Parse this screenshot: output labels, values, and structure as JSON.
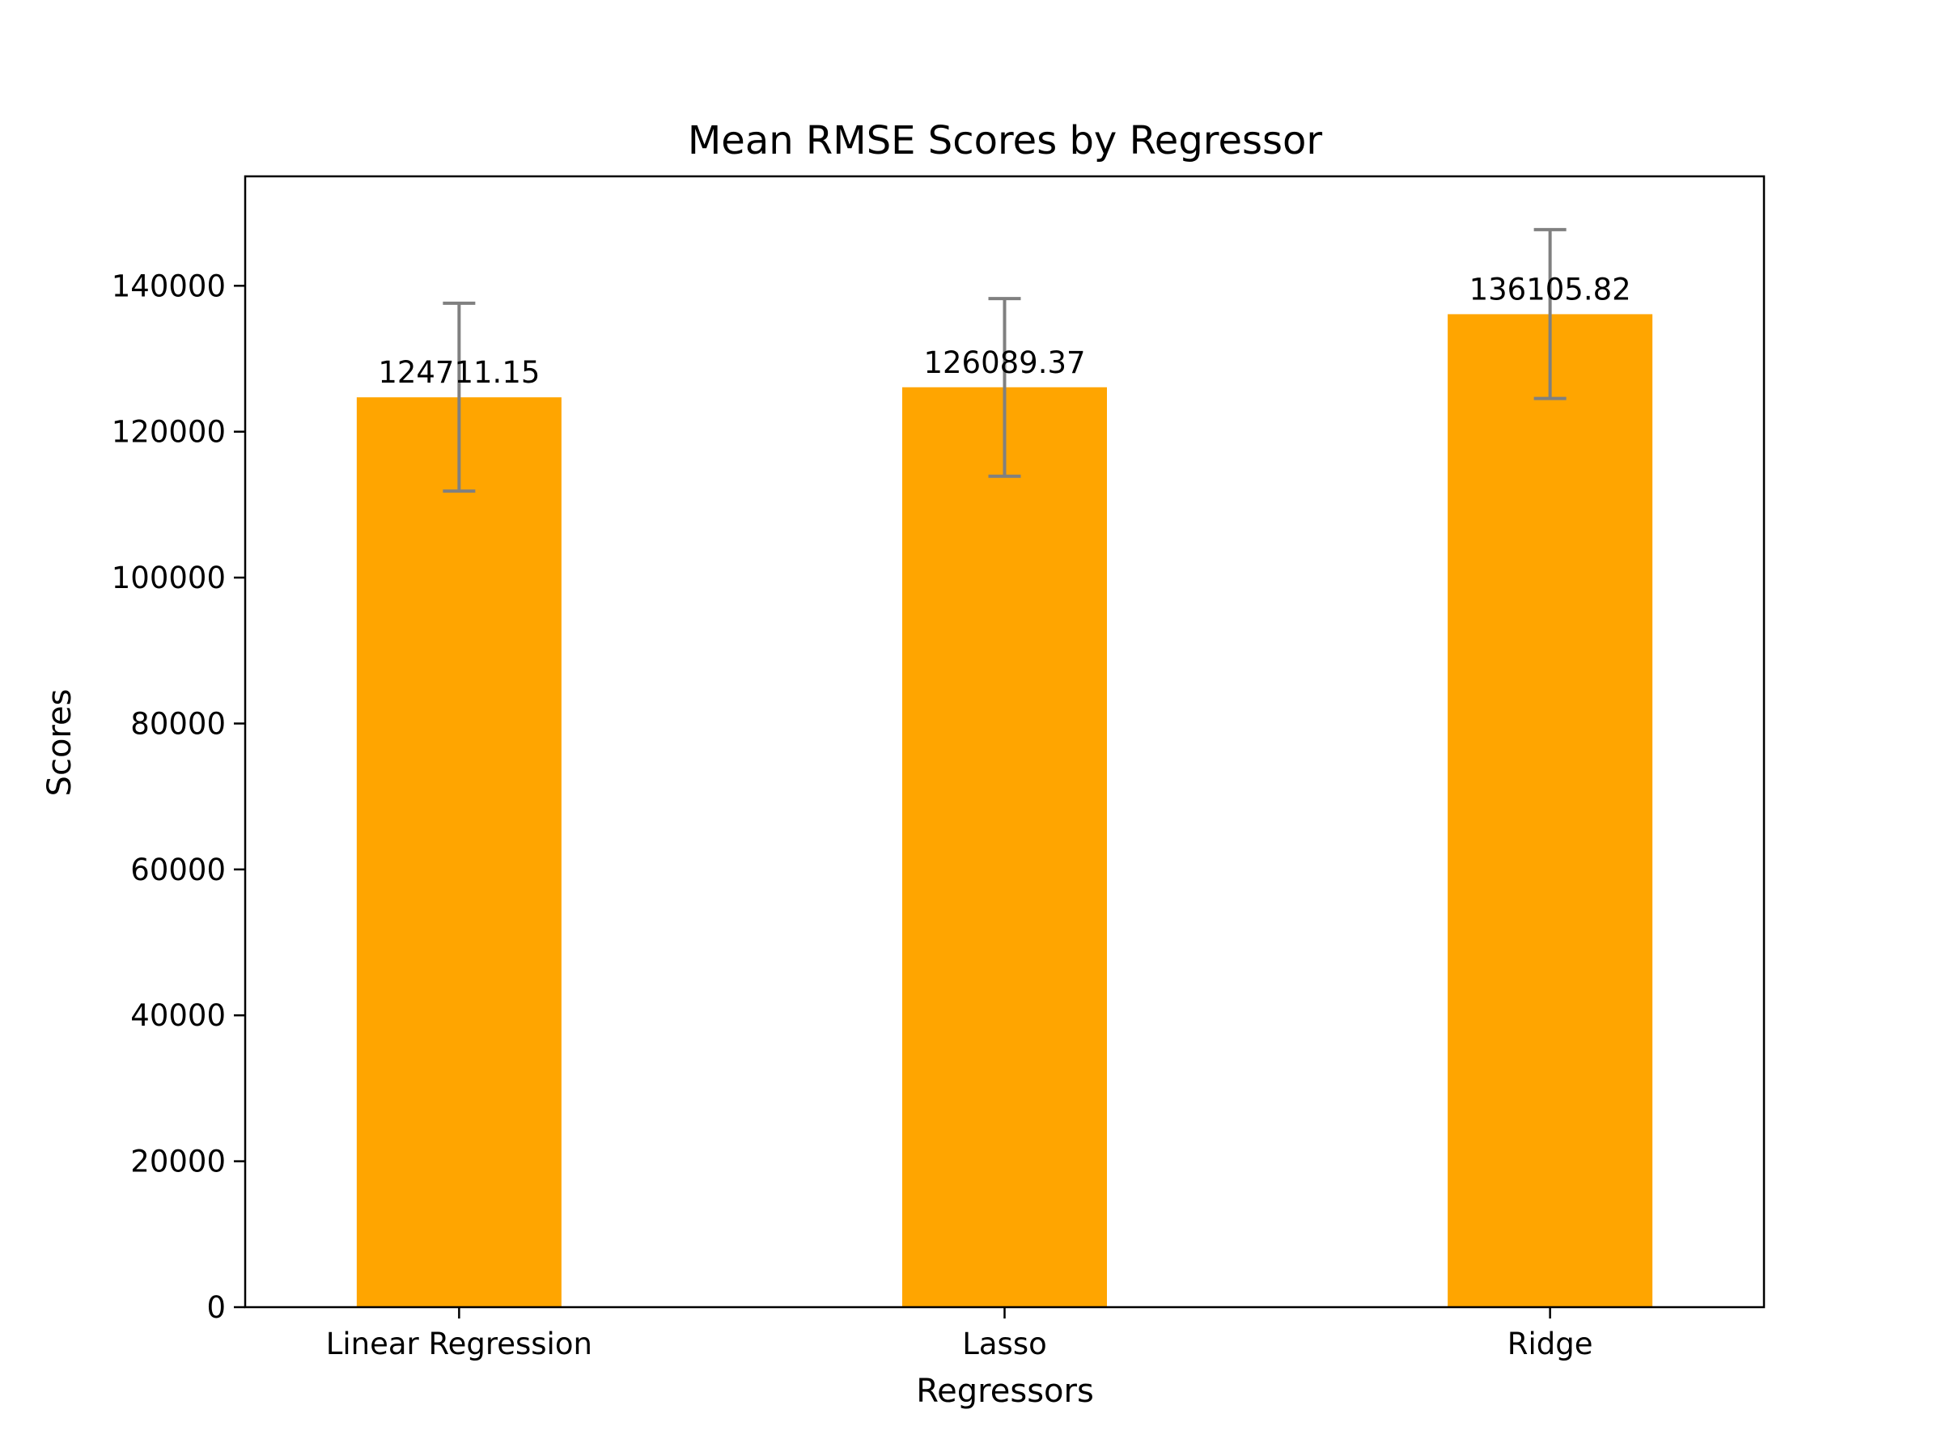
{
  "chart_data": {
    "type": "bar",
    "title": "Mean RMSE Scores by Regressor",
    "xlabel": "Regressors",
    "ylabel": "Scores",
    "categories": [
      "Linear Regression",
      "Lasso",
      "Ridge"
    ],
    "values": [
      124711.15,
      126089.37,
      136105.82
    ],
    "value_labels": [
      "124711.15",
      "126089.37",
      "136105.82"
    ],
    "error_low": [
      111850,
      113900,
      124550
    ],
    "error_high": [
      137600,
      138250,
      147700
    ],
    "ylim": [
      0,
      155000
    ],
    "yticks": [
      0,
      20000,
      40000,
      60000,
      80000,
      100000,
      120000,
      140000
    ],
    "ytick_labels": [
      "0",
      "20000",
      "40000",
      "60000",
      "80000",
      "100000",
      "120000",
      "140000"
    ],
    "grid": false,
    "legend": "none",
    "colors": {
      "bar": "#FFA500",
      "error_bar": "#808080",
      "axis": "#000000"
    }
  }
}
